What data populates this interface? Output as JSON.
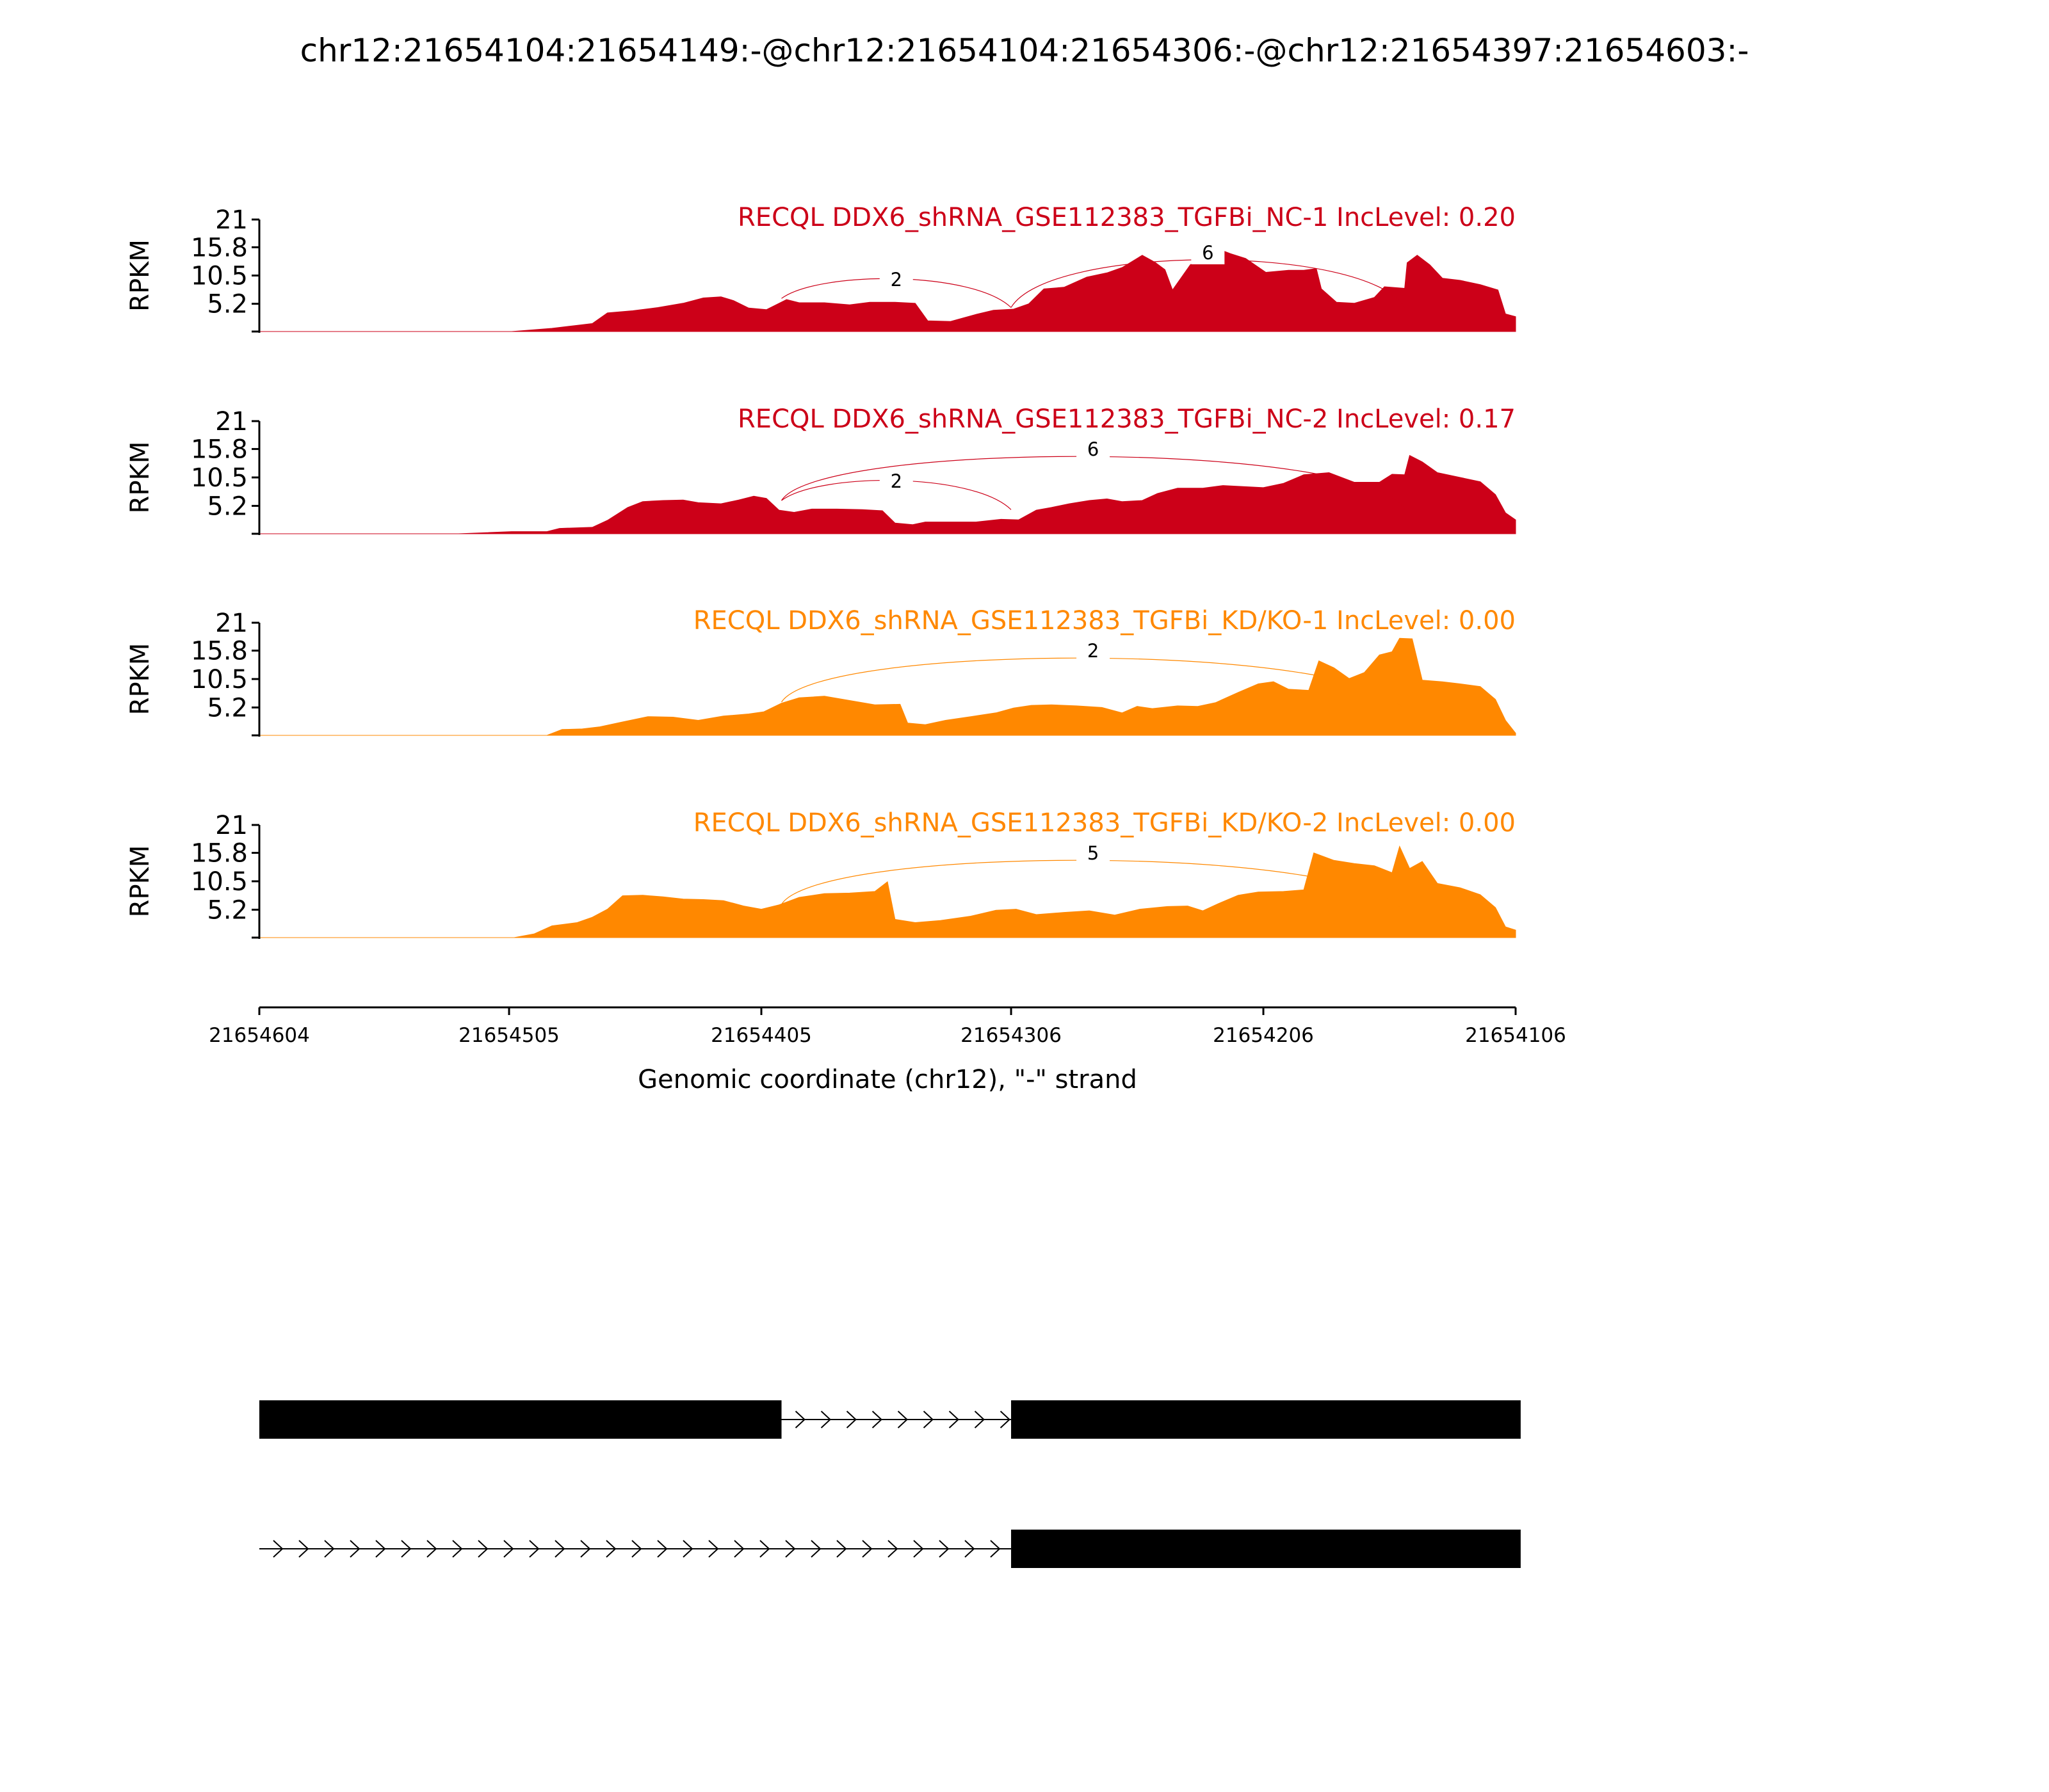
{
  "figure_title": "chr12:21654104:21654149:-@chr12:21654104:21654306:-@chr12:21654397:21654603:-",
  "colors": {
    "nc": "#cc0018",
    "kd": "#ff8800",
    "axis": "#000000",
    "gene": "#000000"
  },
  "chart_data": {
    "type": "area",
    "x_range": [
      21654604,
      21654106
    ],
    "x_direction": "descending",
    "xlabel": "Genomic coordinate (chr12), \"-\" strand",
    "x_ticks": [
      21654604,
      21654505,
      21654405,
      21654306,
      21654206,
      21654106
    ],
    "ylabel": "RPKM",
    "ylim": [
      0,
      21
    ],
    "y_ticks": [
      5.2,
      10.5,
      15.8,
      21
    ],
    "panels": [
      {
        "title": "RECQL DDX6_shRNA_GSE112383_TGFBi_NC-1 IncLevel: 0.20",
        "color_key": "nc",
        "coverage": [
          [
            21654604,
            0
          ],
          [
            21654504,
            0
          ],
          [
            21654488,
            0.6
          ],
          [
            21654472,
            1.5
          ],
          [
            21654466,
            3.5
          ],
          [
            21654456,
            3.9
          ],
          [
            21654446,
            4.5
          ],
          [
            21654436,
            5.3
          ],
          [
            21654428,
            6.3
          ],
          [
            21654421,
            6.5
          ],
          [
            21654416,
            5.8
          ],
          [
            21654410,
            4.4
          ],
          [
            21654403,
            4.1
          ],
          [
            21654395,
            6.0
          ],
          [
            21654390,
            5.4
          ],
          [
            21654380,
            5.4
          ],
          [
            21654370,
            5.0
          ],
          [
            21654362,
            5.5
          ],
          [
            21654352,
            5.5
          ],
          [
            21654344,
            5.3
          ],
          [
            21654339,
            2.0
          ],
          [
            21654330,
            1.9
          ],
          [
            21654320,
            3.2
          ],
          [
            21654313,
            4.0
          ],
          [
            21654305,
            4.2
          ],
          [
            21654299,
            5.2
          ],
          [
            21654293,
            8.0
          ],
          [
            21654285,
            8.3
          ],
          [
            21654276,
            10.2
          ],
          [
            21654268,
            11.0
          ],
          [
            21654262,
            12.0
          ],
          [
            21654254,
            14.3
          ],
          [
            21654249,
            13.0
          ],
          [
            21654245,
            11.6
          ],
          [
            21654242,
            7.8
          ],
          [
            21654235,
            12.5
          ],
          [
            21654229,
            14.6
          ],
          [
            21654224,
            15.5
          ],
          [
            21654219,
            14.6
          ],
          [
            21654213,
            13.7
          ],
          [
            21654205,
            11.1
          ],
          [
            21654196,
            11.5
          ],
          [
            21654190,
            11.5
          ],
          [
            21654185,
            11.8
          ],
          [
            21654183,
            8.0
          ],
          [
            21654177,
            5.5
          ],
          [
            21654170,
            5.3
          ],
          [
            21654162,
            6.4
          ],
          [
            21654158,
            8.4
          ],
          [
            21654150,
            8.1
          ],
          [
            21654149,
            12.9
          ],
          [
            21654145,
            14.3
          ],
          [
            21654140,
            12.5
          ],
          [
            21654135,
            10.0
          ],
          [
            21654128,
            9.6
          ],
          [
            21654120,
            8.8
          ],
          [
            21654113,
            7.8
          ],
          [
            21654110,
            3.3
          ],
          [
            21654106,
            2.8
          ]
        ],
        "junctions": [
          {
            "label": "2",
            "from": 21654397,
            "to": 21654306
          },
          {
            "label": "6",
            "from": 21654306,
            "to": 21654150
          }
        ]
      },
      {
        "title": "RECQL DDX6_shRNA_GSE112383_TGFBi_NC-2 IncLevel: 0.17",
        "color_key": "nc",
        "coverage": [
          [
            21654604,
            0
          ],
          [
            21654525,
            0
          ],
          [
            21654504,
            0.4
          ],
          [
            21654490,
            0.4
          ],
          [
            21654485,
            1.0
          ],
          [
            21654472,
            1.2
          ],
          [
            21654466,
            2.5
          ],
          [
            21654458,
            4.9
          ],
          [
            21654452,
            6.0
          ],
          [
            21654444,
            6.2
          ],
          [
            21654436,
            6.3
          ],
          [
            21654430,
            5.8
          ],
          [
            21654421,
            5.6
          ],
          [
            21654414,
            6.3
          ],
          [
            21654408,
            7.0
          ],
          [
            21654403,
            6.6
          ],
          [
            21654398,
            4.4
          ],
          [
            21654392,
            4.0
          ],
          [
            21654385,
            4.6
          ],
          [
            21654375,
            4.6
          ],
          [
            21654365,
            4.5
          ],
          [
            21654357,
            4.3
          ],
          [
            21654352,
            2.0
          ],
          [
            21654345,
            1.7
          ],
          [
            21654340,
            2.2
          ],
          [
            21654330,
            2.2
          ],
          [
            21654320,
            2.2
          ],
          [
            21654310,
            2.7
          ],
          [
            21654303,
            2.6
          ],
          [
            21654296,
            4.4
          ],
          [
            21654290,
            4.9
          ],
          [
            21654283,
            5.6
          ],
          [
            21654275,
            6.2
          ],
          [
            21654268,
            6.5
          ],
          [
            21654262,
            6.0
          ],
          [
            21654254,
            6.2
          ],
          [
            21654248,
            7.5
          ],
          [
            21654240,
            8.5
          ],
          [
            21654230,
            8.5
          ],
          [
            21654222,
            9.0
          ],
          [
            21654214,
            8.8
          ],
          [
            21654206,
            8.6
          ],
          [
            21654198,
            9.4
          ],
          [
            21654190,
            11.0
          ],
          [
            21654180,
            11.4
          ],
          [
            21654170,
            9.6
          ],
          [
            21654160,
            9.6
          ],
          [
            21654155,
            11.1
          ],
          [
            21654150,
            11.0
          ],
          [
            21654148,
            14.6
          ],
          [
            21654143,
            13.4
          ],
          [
            21654137,
            11.4
          ],
          [
            21654128,
            10.5
          ],
          [
            21654120,
            9.7
          ],
          [
            21654114,
            7.3
          ],
          [
            21654110,
            3.9
          ],
          [
            21654106,
            2.6
          ]
        ],
        "junctions": [
          {
            "label": "2",
            "from": 21654397,
            "to": 21654306
          },
          {
            "label": "6",
            "from": 21654397,
            "to": 21654150
          }
        ]
      },
      {
        "title": "RECQL DDX6_shRNA_GSE112383_TGFBi_KD/KO-1 IncLevel: 0.00",
        "color_key": "kd",
        "coverage": [
          [
            21654604,
            0
          ],
          [
            21654490,
            0
          ],
          [
            21654484,
            1.1
          ],
          [
            21654476,
            1.2
          ],
          [
            21654469,
            1.6
          ],
          [
            21654460,
            2.5
          ],
          [
            21654450,
            3.5
          ],
          [
            21654440,
            3.4
          ],
          [
            21654430,
            2.8
          ],
          [
            21654420,
            3.6
          ],
          [
            21654410,
            4.0
          ],
          [
            21654404,
            4.4
          ],
          [
            21654397,
            6.0
          ],
          [
            21654390,
            7.0
          ],
          [
            21654380,
            7.3
          ],
          [
            21654370,
            6.5
          ],
          [
            21654360,
            5.7
          ],
          [
            21654350,
            5.8
          ],
          [
            21654347,
            2.3
          ],
          [
            21654340,
            2.0
          ],
          [
            21654332,
            2.8
          ],
          [
            21654322,
            3.5
          ],
          [
            21654312,
            4.2
          ],
          [
            21654305,
            5.1
          ],
          [
            21654298,
            5.6
          ],
          [
            21654290,
            5.7
          ],
          [
            21654280,
            5.5
          ],
          [
            21654270,
            5.2
          ],
          [
            21654262,
            4.2
          ],
          [
            21654256,
            5.4
          ],
          [
            21654250,
            5.0
          ],
          [
            21654240,
            5.5
          ],
          [
            21654232,
            5.4
          ],
          [
            21654225,
            6.1
          ],
          [
            21654216,
            8.0
          ],
          [
            21654208,
            9.6
          ],
          [
            21654202,
            10.0
          ],
          [
            21654196,
            8.6
          ],
          [
            21654188,
            8.4
          ],
          [
            21654184,
            13.9
          ],
          [
            21654178,
            12.6
          ],
          [
            21654172,
            10.6
          ],
          [
            21654166,
            11.7
          ],
          [
            21654160,
            15.0
          ],
          [
            21654155,
            15.6
          ],
          [
            21654152,
            18.1
          ],
          [
            21654147,
            18.0
          ],
          [
            21654143,
            10.3
          ],
          [
            21654135,
            10.0
          ],
          [
            21654128,
            9.6
          ],
          [
            21654120,
            9.1
          ],
          [
            21654114,
            6.7
          ],
          [
            21654110,
            2.8
          ],
          [
            21654106,
            0.4
          ]
        ],
        "junctions": [
          {
            "label": "2",
            "from": 21654397,
            "to": 21654150
          }
        ]
      },
      {
        "title": "RECQL DDX6_shRNA_GSE112383_TGFBi_KD/KO-2 IncLevel: 0.00",
        "color_key": "kd",
        "coverage": [
          [
            21654604,
            0
          ],
          [
            21654503,
            0
          ],
          [
            21654495,
            0.7
          ],
          [
            21654488,
            2.2
          ],
          [
            21654478,
            2.8
          ],
          [
            21654472,
            3.8
          ],
          [
            21654466,
            5.3
          ],
          [
            21654460,
            7.8
          ],
          [
            21654452,
            7.9
          ],
          [
            21654444,
            7.6
          ],
          [
            21654436,
            7.2
          ],
          [
            21654428,
            7.1
          ],
          [
            21654420,
            6.9
          ],
          [
            21654412,
            5.9
          ],
          [
            21654405,
            5.3
          ],
          [
            21654398,
            6.1
          ],
          [
            21654390,
            7.5
          ],
          [
            21654380,
            8.2
          ],
          [
            21654370,
            8.3
          ],
          [
            21654360,
            8.6
          ],
          [
            21654355,
            10.4
          ],
          [
            21654352,
            3.4
          ],
          [
            21654344,
            2.8
          ],
          [
            21654334,
            3.2
          ],
          [
            21654322,
            4.0
          ],
          [
            21654312,
            5.1
          ],
          [
            21654304,
            5.3
          ],
          [
            21654296,
            4.3
          ],
          [
            21654285,
            4.7
          ],
          [
            21654275,
            5.0
          ],
          [
            21654265,
            4.2
          ],
          [
            21654255,
            5.3
          ],
          [
            21654244,
            5.8
          ],
          [
            21654236,
            5.9
          ],
          [
            21654230,
            5.0
          ],
          [
            21654224,
            6.3
          ],
          [
            21654216,
            7.9
          ],
          [
            21654208,
            8.5
          ],
          [
            21654198,
            8.6
          ],
          [
            21654190,
            8.9
          ],
          [
            21654186,
            15.8
          ],
          [
            21654178,
            14.4
          ],
          [
            21654170,
            13.8
          ],
          [
            21654162,
            13.4
          ],
          [
            21654155,
            12.1
          ],
          [
            21654152,
            17.0
          ],
          [
            21654148,
            12.9
          ],
          [
            21654143,
            14.2
          ],
          [
            21654137,
            10.1
          ],
          [
            21654128,
            9.3
          ],
          [
            21654120,
            8.0
          ],
          [
            21654114,
            5.6
          ],
          [
            21654110,
            2.0
          ],
          [
            21654106,
            1.4
          ]
        ],
        "junctions": [
          {
            "label": "5",
            "from": 21654397,
            "to": 21654150
          }
        ]
      }
    ],
    "gene_models": [
      {
        "exons": [
          [
            21654604,
            21654397
          ],
          [
            21654306,
            21654104
          ]
        ],
        "introns": [
          [
            21654397,
            21654306
          ]
        ]
      },
      {
        "exons": [
          [
            21654306,
            21654104
          ]
        ],
        "introns": [
          [
            21654604,
            21654306
          ]
        ]
      }
    ]
  }
}
